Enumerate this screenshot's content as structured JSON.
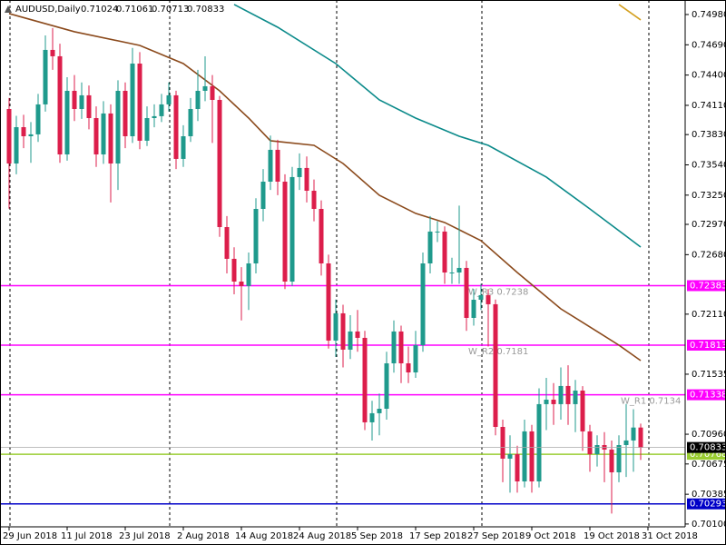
{
  "chart_data": {
    "type": "candlestick",
    "title": "AUDUSD,Daily",
    "ylim": [
      0.70073,
      0.75119
    ],
    "yticks": [
      {
        "value": 0.7498,
        "label": "0.74980"
      },
      {
        "value": 0.7469,
        "label": "0.74690"
      },
      {
        "value": 0.744,
        "label": "0.74400"
      },
      {
        "value": 0.7411,
        "label": "0.74110"
      },
      {
        "value": 0.7383,
        "label": "0.73830"
      },
      {
        "value": 0.7354,
        "label": "0.73540"
      },
      {
        "value": 0.7325,
        "label": "0.73250"
      },
      {
        "value": 0.7297,
        "label": "0.72970"
      },
      {
        "value": 0.7268,
        "label": "0.72680"
      },
      {
        "value": 0.7211,
        "label": "0.72110"
      },
      {
        "value": 0.71535,
        "label": "0.71535"
      },
      {
        "value": 0.7096,
        "label": "0.70960"
      },
      {
        "value": 0.70675,
        "label": "0.70675"
      },
      {
        "value": 0.70385,
        "label": "0.70385"
      },
      {
        "value": 0.701,
        "label": "0.70100"
      }
    ],
    "xticks": [
      {
        "value": "2018-06-29",
        "label": "29 Jun 2018"
      },
      {
        "value": "2018-07-11",
        "label": "11 Jul 2018"
      },
      {
        "value": "2018-07-23",
        "label": "23 Jul 2018"
      },
      {
        "value": "2018-08-02",
        "label": "2 Aug 2018"
      },
      {
        "value": "2018-08-14",
        "label": "14 Aug 2018"
      },
      {
        "value": "2018-08-24",
        "label": "24 Aug 2018"
      },
      {
        "value": "2018-09-05",
        "label": "5 Sep 2018"
      },
      {
        "value": "2018-09-17",
        "label": "17 Sep 2018"
      },
      {
        "value": "2018-09-27",
        "label": "27 Sep 2018"
      },
      {
        "value": "2018-10-09",
        "label": "9 Oct 2018"
      },
      {
        "value": "2018-10-19",
        "label": "19 Oct 2018"
      },
      {
        "value": "2018-10-31",
        "label": "31 Oct 2018"
      }
    ],
    "up_color": "#1f9a8c",
    "down_color": "#dc1e4b",
    "candles": {
      "x": [
        "2018-06-29",
        "2018-07-02",
        "2018-07-03",
        "2018-07-04",
        "2018-07-05",
        "2018-07-06",
        "2018-07-09",
        "2018-07-10",
        "2018-07-11",
        "2018-07-12",
        "2018-07-13",
        "2018-07-16",
        "2018-07-17",
        "2018-07-18",
        "2018-07-19",
        "2018-07-20",
        "2018-07-23",
        "2018-07-24",
        "2018-07-25",
        "2018-07-26",
        "2018-07-27",
        "2018-07-30",
        "2018-07-31",
        "2018-08-01",
        "2018-08-02",
        "2018-08-03",
        "2018-08-06",
        "2018-08-07",
        "2018-08-08",
        "2018-08-09",
        "2018-08-10",
        "2018-08-13",
        "2018-08-14",
        "2018-08-15",
        "2018-08-16",
        "2018-08-17",
        "2018-08-20",
        "2018-08-21",
        "2018-08-22",
        "2018-08-23",
        "2018-08-24",
        "2018-08-27",
        "2018-08-28",
        "2018-08-29",
        "2018-08-30",
        "2018-08-31",
        "2018-09-03",
        "2018-09-04",
        "2018-09-05",
        "2018-09-06",
        "2018-09-07",
        "2018-09-10",
        "2018-09-11",
        "2018-09-12",
        "2018-09-13",
        "2018-09-14",
        "2018-09-17",
        "2018-09-18",
        "2018-09-19",
        "2018-09-20",
        "2018-09-21",
        "2018-09-24",
        "2018-09-25",
        "2018-09-26",
        "2018-09-27",
        "2018-09-28",
        "2018-10-01",
        "2018-10-02",
        "2018-10-03",
        "2018-10-04",
        "2018-10-05",
        "2018-10-08",
        "2018-10-09",
        "2018-10-10",
        "2018-10-11",
        "2018-10-12",
        "2018-10-15",
        "2018-10-16",
        "2018-10-17",
        "2018-10-18",
        "2018-10-19",
        "2018-10-22",
        "2018-10-23",
        "2018-10-24",
        "2018-10-25",
        "2018-10-26",
        "2018-10-29",
        "2018-10-30"
      ],
      "open": [
        0.74075,
        0.73553,
        0.73901,
        0.73814,
        0.73832,
        0.74119,
        0.74641,
        0.7458,
        0.7364,
        0.74249,
        0.74075,
        0.74206,
        0.73988,
        0.7364,
        0.74032,
        0.73553,
        0.74249,
        0.73814,
        0.7451,
        0.73771,
        0.73988,
        0.74006,
        0.74119,
        0.74206,
        0.73597,
        0.73814,
        0.74075,
        0.74249,
        0.74293,
        0.74162,
        0.72944,
        0.7264,
        0.72422,
        0.72379,
        0.72596,
        0.73118,
        0.73379,
        0.73684,
        0.73379,
        0.72422,
        0.73423,
        0.7351,
        0.73292,
        0.73118,
        0.72596,
        0.71857,
        0.72118,
        0.7177,
        0.71944,
        0.71883,
        0.71074,
        0.71161,
        0.71204,
        0.71639,
        0.71944,
        0.71639,
        0.71552,
        0.71813,
        0.72596,
        0.72901,
        0.72901,
        0.72509,
        0.72509,
        0.72553,
        0.72074,
        0.72248,
        0.72292,
        0.72205,
        0.7103,
        0.70726,
        0.70769,
        0.70508,
        0.70987,
        0.70508,
        0.71248,
        0.71291,
        0.71248,
        0.71422,
        0.71248,
        0.71378,
        0.70987,
        0.70769,
        0.70856,
        0.70813,
        0.70595,
        0.70856,
        0.709,
        0.71024
      ],
      "high": [
        0.7418,
        0.7401,
        0.7402,
        0.7395,
        0.7422,
        0.7478,
        0.7485,
        0.747,
        0.7438,
        0.744,
        0.7433,
        0.743,
        0.741,
        0.7415,
        0.7412,
        0.7435,
        0.7433,
        0.7466,
        0.7462,
        0.741,
        0.7412,
        0.7422,
        0.7433,
        0.7425,
        0.7392,
        0.7418,
        0.7445,
        0.7458,
        0.744,
        0.742,
        0.7305,
        0.7275,
        0.7256,
        0.727,
        0.7322,
        0.735,
        0.7382,
        0.7378,
        0.7345,
        0.7352,
        0.7365,
        0.7362,
        0.734,
        0.732,
        0.7268,
        0.7225,
        0.722,
        0.721,
        0.7215,
        0.7195,
        0.7128,
        0.7135,
        0.7175,
        0.7205,
        0.72,
        0.718,
        0.7195,
        0.727,
        0.7305,
        0.73,
        0.7295,
        0.7265,
        0.7315,
        0.7262,
        0.7235,
        0.724,
        0.7235,
        0.7225,
        0.711,
        0.7095,
        0.7085,
        0.711,
        0.7105,
        0.714,
        0.715,
        0.7145,
        0.716,
        0.7162,
        0.7148,
        0.7142,
        0.7105,
        0.7095,
        0.7098,
        0.709,
        0.7095,
        0.7125,
        0.712,
        0.71061
      ],
      "low": [
        0.7312,
        0.7345,
        0.737,
        0.7356,
        0.7376,
        0.7405,
        0.7445,
        0.7356,
        0.7358,
        0.7396,
        0.7398,
        0.7388,
        0.7352,
        0.7355,
        0.7318,
        0.733,
        0.737,
        0.7375,
        0.7369,
        0.7372,
        0.739,
        0.7395,
        0.7405,
        0.735,
        0.7352,
        0.7376,
        0.7396,
        0.7415,
        0.7375,
        0.7285,
        0.725,
        0.723,
        0.7205,
        0.7215,
        0.725,
        0.73,
        0.733,
        0.7325,
        0.7235,
        0.7238,
        0.733,
        0.7318,
        0.73,
        0.7248,
        0.7178,
        0.717,
        0.716,
        0.7168,
        0.7175,
        0.71,
        0.709,
        0.7095,
        0.711,
        0.7155,
        0.7145,
        0.7145,
        0.715,
        0.7175,
        0.725,
        0.728,
        0.724,
        0.724,
        0.724,
        0.7195,
        0.72,
        0.7215,
        0.718,
        0.7095,
        0.705,
        0.704,
        0.704,
        0.7045,
        0.704,
        0.7045,
        0.71,
        0.7105,
        0.711,
        0.7105,
        0.7098,
        0.708,
        0.706,
        0.7065,
        0.705,
        0.702,
        0.705,
        0.7055,
        0.706,
        0.70713
      ],
      "close": [
        0.73553,
        0.73901,
        0.73814,
        0.73832,
        0.74119,
        0.74641,
        0.7458,
        0.7364,
        0.74249,
        0.74075,
        0.74206,
        0.73988,
        0.7364,
        0.74032,
        0.73553,
        0.74249,
        0.73814,
        0.7451,
        0.73771,
        0.73988,
        0.74006,
        0.74119,
        0.74206,
        0.73597,
        0.73814,
        0.74075,
        0.74249,
        0.74293,
        0.74162,
        0.72944,
        0.7264,
        0.72422,
        0.72379,
        0.72596,
        0.73118,
        0.73379,
        0.73684,
        0.73379,
        0.72422,
        0.73423,
        0.7351,
        0.73292,
        0.73118,
        0.72596,
        0.71857,
        0.72118,
        0.7177,
        0.71944,
        0.71883,
        0.71074,
        0.71161,
        0.71204,
        0.71639,
        0.71944,
        0.71639,
        0.71552,
        0.71813,
        0.72596,
        0.72901,
        0.72901,
        0.72509,
        0.72509,
        0.72553,
        0.72074,
        0.72248,
        0.72292,
        0.72205,
        0.7103,
        0.70726,
        0.70769,
        0.70508,
        0.70987,
        0.70508,
        0.71248,
        0.71291,
        0.71248,
        0.71422,
        0.71248,
        0.71378,
        0.70987,
        0.70769,
        0.70856,
        0.70813,
        0.70595,
        0.70856,
        0.709,
        0.71024,
        0.70833
      ]
    },
    "lines": [
      {
        "color": "#8b4a1c",
        "x": [
          "2018-06-29",
          "2018-07-12",
          "2018-07-25",
          "2018-08-02",
          "2018-08-09",
          "2018-08-15",
          "2018-08-20",
          "2018-08-28",
          "2018-09-03",
          "2018-09-10",
          "2018-09-17",
          "2018-09-21",
          "2018-09-28",
          "2018-10-05",
          "2018-10-15",
          "2018-10-22",
          "2018-10-25",
          "2018-10-30"
        ],
        "values": [
          0.74989,
          0.74815,
          0.74684,
          0.7451,
          0.74249,
          0.73988,
          0.73771,
          0.73727,
          0.73553,
          0.73249,
          0.73075,
          0.72988,
          0.72814,
          0.72509,
          0.72161,
          0.71944,
          0.71813,
          0.71665
        ]
      },
      {
        "color": "#0b8a8a",
        "x": [
          "2018-08-13",
          "2018-08-21",
          "2018-08-31",
          "2018-09-10",
          "2018-09-17",
          "2018-09-25",
          "2018-10-01",
          "2018-10-11",
          "2018-10-19",
          "2018-10-30"
        ],
        "values": [
          0.75076,
          0.74858,
          0.7451,
          0.74162,
          0.73988,
          0.73814,
          0.73727,
          0.73423,
          0.73118,
          0.72753
        ]
      },
      {
        "color": "#d4a020",
        "x": [
          "2018-10-25",
          "2018-10-30"
        ],
        "values": [
          0.75076,
          0.74928
        ]
      }
    ],
    "hlines": [
      {
        "value": 0.72383,
        "color": "#ff00ff"
      },
      {
        "value": 0.71813,
        "color": "#ff00ff"
      },
      {
        "value": 0.71338,
        "color": "#ff00ff"
      },
      {
        "value": 0.70768,
        "color": "#9acd32"
      },
      {
        "value": 0.70293,
        "color": "#0000c8"
      }
    ],
    "annotations": [
      {
        "text": "W_R3 0.7238",
        "x": "2018-09-26",
        "value": 0.72383
      },
      {
        "text": "W_R2 0.7181",
        "x": "2018-09-26",
        "value": 0.71813
      },
      {
        "text": "W_R1 0.7134",
        "x": "2018-10-25",
        "value": 0.71338
      }
    ]
  }
}
